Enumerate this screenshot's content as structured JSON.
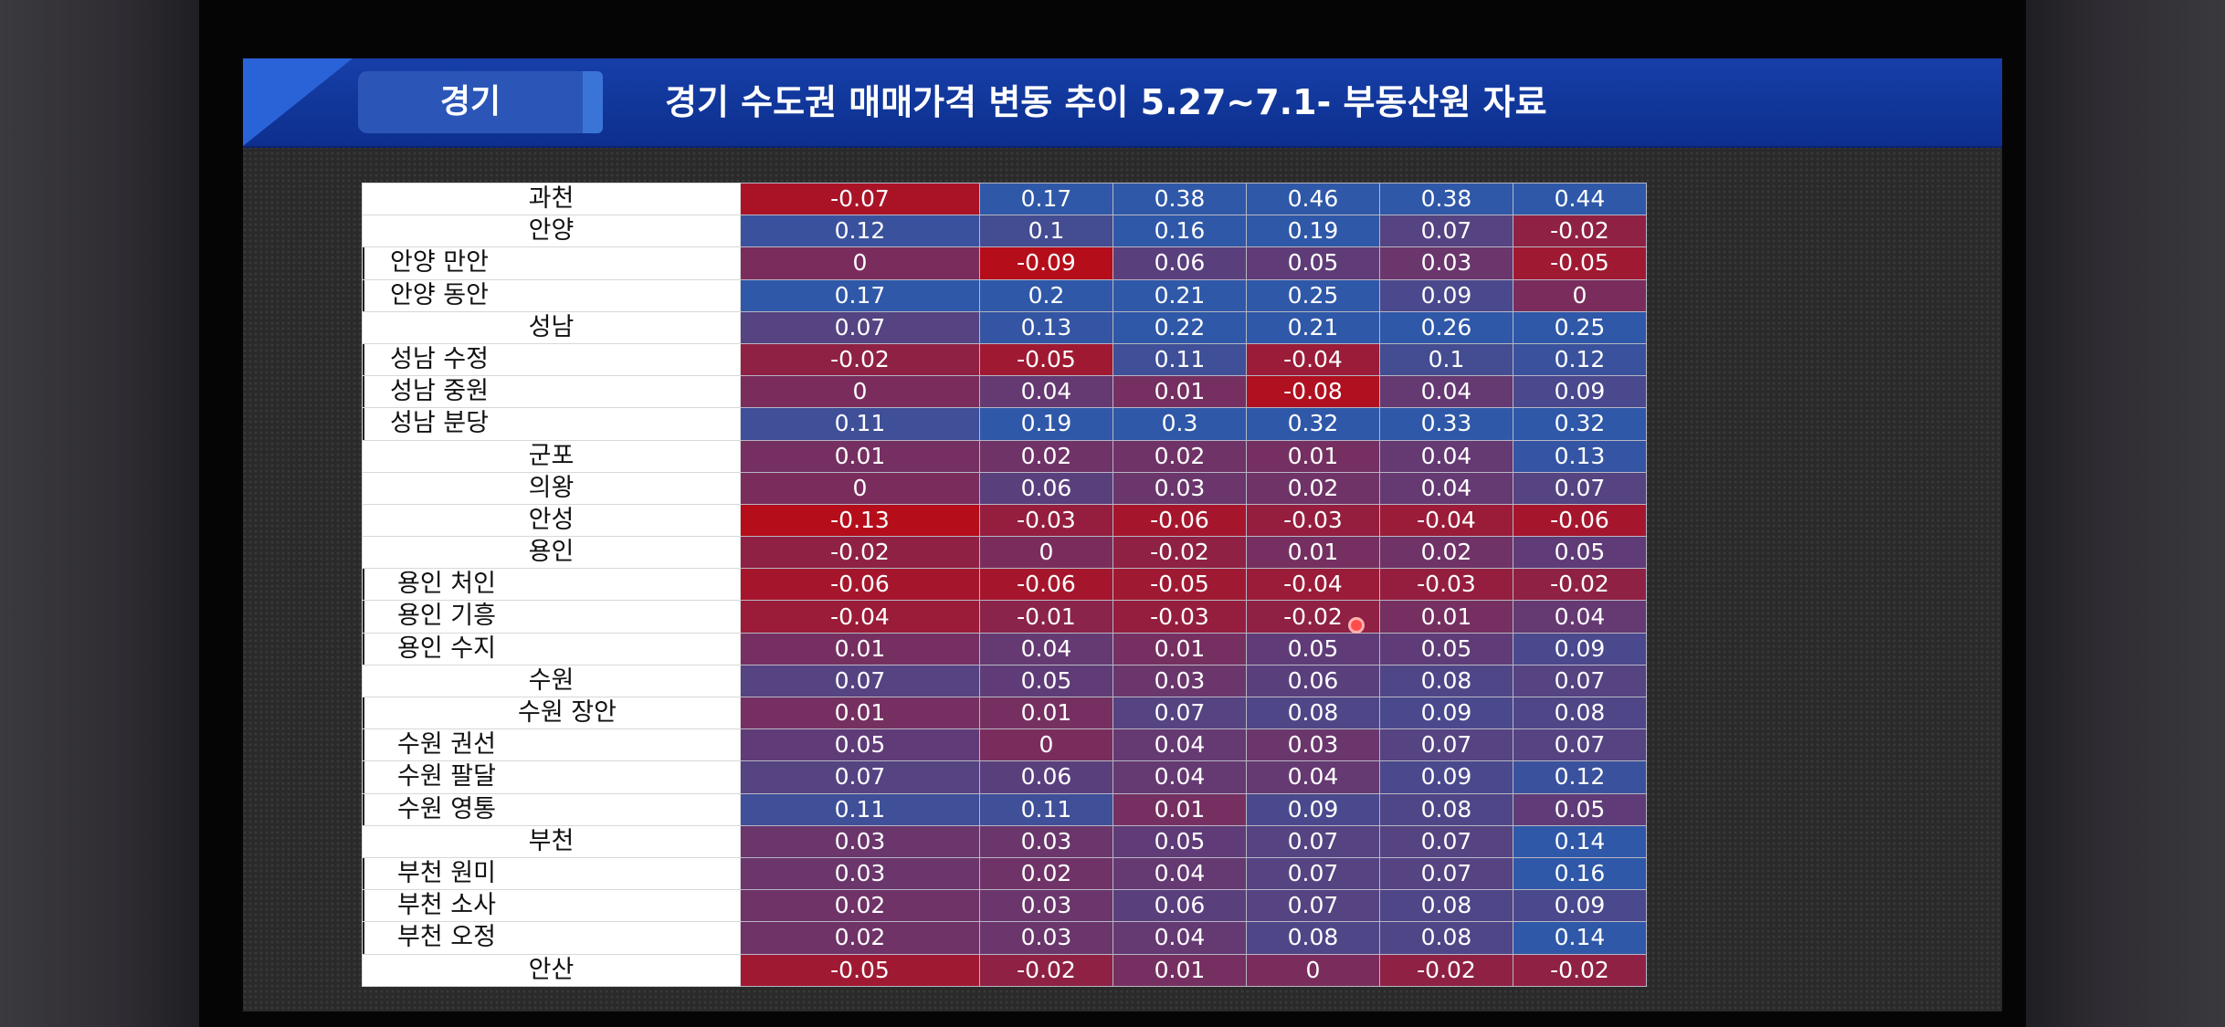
{
  "header": {
    "badge": "경기",
    "title": "경기 수도권 매매가격 변동 추이 5.27~7.1- 부동산원 자료"
  },
  "table": {
    "rows": [
      {
        "label": "과천",
        "level": "main",
        "values": [
          "-0.07",
          "0.17",
          "0.38",
          "0.46",
          "0.38",
          "0.44"
        ]
      },
      {
        "label": "안양",
        "level": "main",
        "values": [
          "0.12",
          "0.1",
          "0.16",
          "0.19",
          "0.07",
          "-0.02"
        ]
      },
      {
        "label": "안양 만안",
        "level": "sub1",
        "values": [
          "0",
          "-0.09",
          "0.06",
          "0.05",
          "0.03",
          "-0.05"
        ]
      },
      {
        "label": "안양 동안",
        "level": "sub1",
        "values": [
          "0.17",
          "0.2",
          "0.21",
          "0.25",
          "0.09",
          "0"
        ]
      },
      {
        "label": "성남",
        "level": "main",
        "values": [
          "0.07",
          "0.13",
          "0.22",
          "0.21",
          "0.26",
          "0.25"
        ]
      },
      {
        "label": "성남 수정",
        "level": "sub1",
        "values": [
          "-0.02",
          "-0.05",
          "0.11",
          "-0.04",
          "0.1",
          "0.12"
        ]
      },
      {
        "label": "성남 중원",
        "level": "sub1",
        "values": [
          "0",
          "0.04",
          "0.01",
          "-0.08",
          "0.04",
          "0.09"
        ]
      },
      {
        "label": "성남 분당",
        "level": "sub1",
        "values": [
          "0.11",
          "0.19",
          "0.3",
          "0.32",
          "0.33",
          "0.32"
        ]
      },
      {
        "label": "군포",
        "level": "main",
        "values": [
          "0.01",
          "0.02",
          "0.02",
          "0.01",
          "0.04",
          "0.13"
        ]
      },
      {
        "label": "의왕",
        "level": "main",
        "values": [
          "0",
          "0.06",
          "0.03",
          "0.02",
          "0.04",
          "0.07"
        ]
      },
      {
        "label": "안성",
        "level": "main",
        "values": [
          "-0.13",
          "-0.03",
          "-0.06",
          "-0.03",
          "-0.04",
          "-0.06"
        ]
      },
      {
        "label": "용인",
        "level": "main",
        "values": [
          "-0.02",
          "0",
          "-0.02",
          "0.01",
          "0.02",
          "0.05"
        ]
      },
      {
        "label": "용인 처인",
        "level": "sub2",
        "values": [
          "-0.06",
          "-0.06",
          "-0.05",
          "-0.04",
          "-0.03",
          "-0.02"
        ]
      },
      {
        "label": "용인 기흥",
        "level": "sub2",
        "values": [
          "-0.04",
          "-0.01",
          "-0.03",
          "-0.02",
          "0.01",
          "0.04"
        ]
      },
      {
        "label": "용인 수지",
        "level": "sub2",
        "values": [
          "0.01",
          "0.04",
          "0.01",
          "0.05",
          "0.05",
          "0.09"
        ]
      },
      {
        "label": "수원",
        "level": "main",
        "values": [
          "0.07",
          "0.05",
          "0.03",
          "0.06",
          "0.08",
          "0.07"
        ]
      },
      {
        "label": "수원 장안",
        "level": "sub3",
        "values": [
          "0.01",
          "0.01",
          "0.07",
          "0.08",
          "0.09",
          "0.08"
        ]
      },
      {
        "label": "수원 권선",
        "level": "sub2",
        "values": [
          "0.05",
          "0",
          "0.04",
          "0.03",
          "0.07",
          "0.07"
        ]
      },
      {
        "label": "수원 팔달",
        "level": "sub2",
        "values": [
          "0.07",
          "0.06",
          "0.04",
          "0.04",
          "0.09",
          "0.12"
        ]
      },
      {
        "label": "수원 영통",
        "level": "sub2",
        "values": [
          "0.11",
          "0.11",
          "0.01",
          "0.09",
          "0.08",
          "0.05"
        ]
      },
      {
        "label": "부천",
        "level": "main",
        "values": [
          "0.03",
          "0.03",
          "0.05",
          "0.07",
          "0.07",
          "0.14"
        ]
      },
      {
        "label": "부천 원미",
        "level": "sub2",
        "values": [
          "0.03",
          "0.02",
          "0.04",
          "0.07",
          "0.07",
          "0.16"
        ]
      },
      {
        "label": "부천 소사",
        "level": "sub2",
        "values": [
          "0.02",
          "0.03",
          "0.06",
          "0.07",
          "0.08",
          "0.09"
        ]
      },
      {
        "label": "부천 오정",
        "level": "sub2",
        "values": [
          "0.02",
          "0.03",
          "0.04",
          "0.08",
          "0.08",
          "0.14"
        ]
      },
      {
        "label": "안산",
        "level": "main",
        "values": [
          "-0.05",
          "-0.02",
          "0.01",
          "0",
          "-0.02",
          "-0.02"
        ]
      }
    ]
  },
  "colors": {
    "negative_strong": "#b50d1a",
    "neutral": "#7a2d5c",
    "positive_strong": "#2f58a8"
  }
}
